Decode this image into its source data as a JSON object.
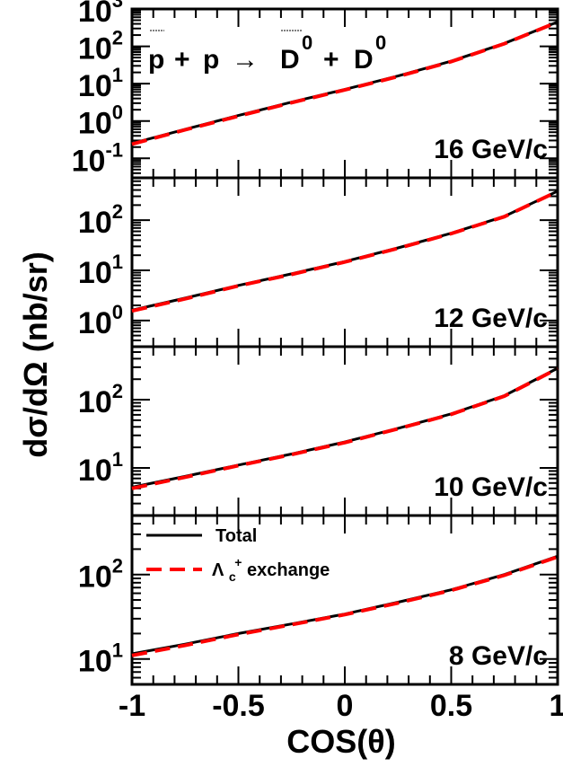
{
  "chart_data": {
    "type": "line",
    "title": "",
    "reaction": {
      "pbar": "p",
      "plus1": "+",
      "p": "p",
      "arrow": "→",
      "dbar": "D",
      "dbar_sup": "0",
      "plus2": "+",
      "d": "D",
      "d_sup": "0"
    },
    "xlabel": "COS(θ)",
    "ylabel": "dσ/dΩ (nb/sr)",
    "xlim": [
      -1,
      1
    ],
    "x_ticks": [
      "-1",
      "-0.5",
      "0",
      "0.5",
      "1"
    ],
    "x_tick_values": [
      -1,
      -0.5,
      0,
      0.5,
      1
    ],
    "y_scale": "log",
    "grid": false,
    "legend": {
      "placement": "top-left of bottom panel",
      "entries": [
        {
          "label": "Total",
          "style": "solid",
          "color": "#000000"
        },
        {
          "label_base": "Λ",
          "label_sub": "c",
          "label_sup": "+",
          "label_rest": " exchange",
          "style": "dashed",
          "color": "#ff0000"
        }
      ]
    },
    "panels": [
      {
        "label": "16 GeV/c",
        "ylim": [
          0.03,
          1000
        ],
        "y_ticks": [
          {
            "base": "10",
            "exp": "3",
            "value": 1000
          },
          {
            "base": "10",
            "exp": "2",
            "value": 100
          },
          {
            "base": "10",
            "exp": "1",
            "value": 10
          },
          {
            "base": "10",
            "exp": "0",
            "value": 1
          },
          {
            "base": "10",
            "exp": "-1",
            "value": 0.1
          }
        ],
        "series": [
          {
            "x": [
              -1,
              -0.75,
              -0.5,
              -0.25,
              0,
              0.25,
              0.5,
              0.75,
              1
            ],
            "total": [
              0.25,
              0.6,
              1.4,
              3.2,
              7,
              16,
              40,
              120,
              450
            ],
            "lambda": [
              0.24,
              0.58,
              1.35,
              3.1,
              6.8,
              15.5,
              39,
              118,
              445
            ]
          }
        ]
      },
      {
        "label": "12 GeV/c",
        "ylim": [
          0.3,
          700
        ],
        "y_ticks": [
          {
            "base": "10",
            "exp": "2",
            "value": 100
          },
          {
            "base": "10",
            "exp": "1",
            "value": 10
          },
          {
            "base": "10",
            "exp": "0",
            "value": 1
          }
        ],
        "series": [
          {
            "x": [
              -1,
              -0.75,
              -0.5,
              -0.25,
              0,
              0.25,
              0.5,
              0.75,
              1
            ],
            "total": [
              1.6,
              2.8,
              5,
              8.5,
              15,
              28,
              55,
              120,
              380
            ],
            "lambda": [
              1.55,
              2.7,
              4.9,
              8.3,
              14.7,
              27.5,
              54,
              118,
              375
            ]
          }
        ]
      },
      {
        "label": "10 GeV/c",
        "ylim": [
          2,
          600
        ],
        "y_ticks": [
          {
            "base": "10",
            "exp": "2",
            "value": 100
          },
          {
            "base": "10",
            "exp": "1",
            "value": 10
          }
        ],
        "series": [
          {
            "x": [
              -1,
              -0.75,
              -0.5,
              -0.25,
              0,
              0.25,
              0.5,
              0.75,
              1
            ],
            "total": [
              5.2,
              7.5,
              11,
              16,
              24,
              38,
              62,
              115,
              290
            ],
            "lambda": [
              5.0,
              7.3,
              10.8,
              15.7,
              23.5,
              37.5,
              61,
              113,
              285
            ]
          }
        ]
      },
      {
        "label": "8 GeV/c",
        "ylim": [
          5,
          500
        ],
        "y_ticks": [
          {
            "base": "10",
            "exp": "2",
            "value": 100
          },
          {
            "base": "10",
            "exp": "1",
            "value": 10
          }
        ],
        "series": [
          {
            "x": [
              -1,
              -0.75,
              -0.5,
              -0.25,
              0,
              0.25,
              0.5,
              0.75,
              1
            ],
            "total": [
              11.5,
              15,
              20,
              26,
              34,
              47,
              66,
              100,
              165
            ],
            "lambda": [
              11.0,
              14.5,
              19.5,
              25.5,
              33.5,
              46,
              65,
              98,
              162
            ]
          }
        ]
      }
    ]
  }
}
